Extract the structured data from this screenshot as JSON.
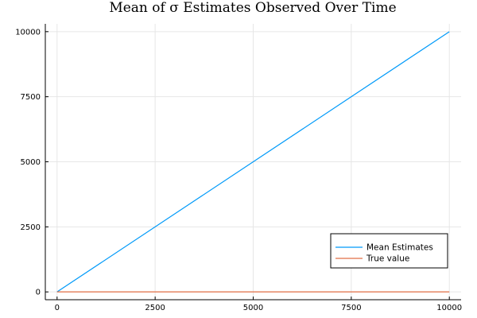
{
  "chart_data": {
    "type": "line",
    "title": "Mean of σ Estimates Observed Over Time",
    "xlabel": "",
    "ylabel": "",
    "xlim": [
      -300,
      10300
    ],
    "ylim": [
      -300,
      10300
    ],
    "xticks": [
      0,
      2500,
      5000,
      7500,
      10000
    ],
    "yticks": [
      0,
      2500,
      5000,
      7500,
      10000
    ],
    "grid": true,
    "legend_position": "bottom-right",
    "series": [
      {
        "name": "Mean Estimates",
        "color": "#009af9",
        "x": [
          0,
          10000
        ],
        "y": [
          0,
          10000
        ]
      },
      {
        "name": "True value",
        "color": "#e26f46",
        "x": [
          0,
          10000
        ],
        "y": [
          1,
          1
        ]
      }
    ]
  }
}
